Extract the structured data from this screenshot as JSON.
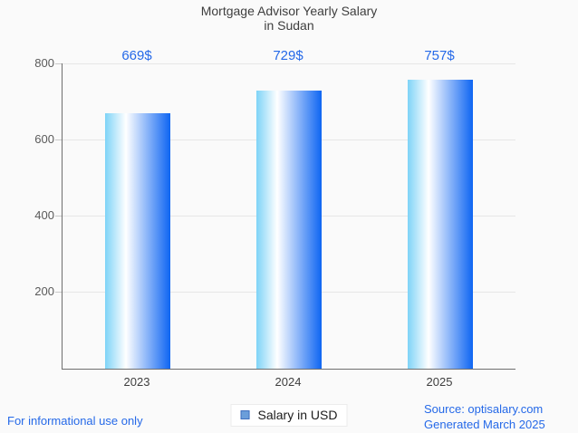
{
  "title": {
    "line1": "Mortgage Advisor Yearly Salary",
    "line2": "in Sudan"
  },
  "chart_data": {
    "type": "bar",
    "title": "Mortgage Advisor Yearly Salary in Sudan",
    "categories": [
      "2023",
      "2024",
      "2025"
    ],
    "values": [
      669,
      729,
      757
    ],
    "value_labels": [
      "669$",
      "729$",
      "757$"
    ],
    "series_name": "Salary in USD",
    "xlabel": "",
    "ylabel": "",
    "ylim": [
      0,
      800
    ],
    "yticks": [
      200,
      400,
      600,
      800
    ],
    "grid": true,
    "legend_position": "bottom",
    "bar_style": "horizontal gradient cylinder (sky blue to white to strong blue)"
  },
  "y_axis": {
    "ticks": [
      "800",
      "600",
      "400",
      "200"
    ]
  },
  "x_axis": {
    "labels": [
      "2023",
      "2024",
      "2025"
    ]
  },
  "bars": {
    "labels": [
      "669$",
      "729$",
      "757$"
    ]
  },
  "legend": {
    "label": "Salary in USD",
    "swatch_icon": "blue-square-icon"
  },
  "footer": {
    "disclaimer": "For informational use only",
    "source": "Source: optisalary.com",
    "generated": "Generated March 2025"
  },
  "colors": {
    "accent_blue": "#2569e8",
    "bar_gradient_left": "#7ed3f7",
    "bar_gradient_mid": "#ffffff",
    "bar_gradient_right": "#0e65f2",
    "legend_swatch_fill": "#6b9eda",
    "legend_swatch_border": "#3f6fbf",
    "axis_line": "#6e6e6e",
    "grid_line": "#e6e6e6",
    "title_text": "#3e3e3e",
    "tick_text": "#5a5a5a",
    "background": "#fafafa"
  }
}
